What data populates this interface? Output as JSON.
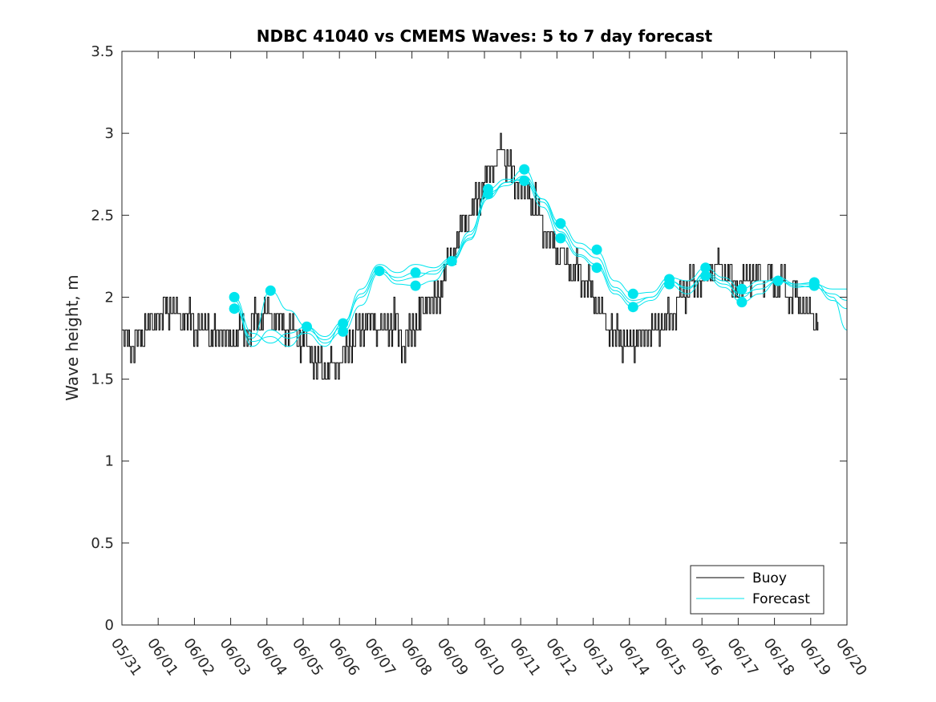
{
  "chart_data": {
    "type": "line",
    "title": "NDBC 41040 vs CMEMS Waves: 5 to 7 day forecast",
    "xlabel": "",
    "ylabel": "Wave height, m",
    "xlim": [
      "05/31",
      "06/20"
    ],
    "ylim": [
      0,
      3.5
    ],
    "x_ticks": [
      "05/31",
      "06/01",
      "06/02",
      "06/03",
      "06/04",
      "06/05",
      "06/06",
      "06/07",
      "06/08",
      "06/09",
      "06/10",
      "06/11",
      "06/12",
      "06/13",
      "06/14",
      "06/15",
      "06/16",
      "06/17",
      "06/18",
      "06/19",
      "06/20"
    ],
    "y_ticks": [
      "0",
      "0.5",
      "1",
      "1.5",
      "2",
      "2.5",
      "3",
      "3.5"
    ],
    "grid": false,
    "legend_position": "bottom-right",
    "colors": {
      "buoy": "#000000",
      "forecast": "#00e5ee"
    },
    "series": [
      {
        "name": "Buoy",
        "x_days": [
          0.0,
          0.3,
          0.6,
          0.9,
          1.2,
          1.5,
          1.8,
          2.1,
          2.4,
          2.7,
          3.0,
          3.3,
          3.6,
          3.9,
          4.2,
          4.5,
          4.8,
          5.1,
          5.4,
          5.7,
          6.0,
          6.3,
          6.6,
          6.9,
          7.2,
          7.5,
          7.8,
          8.1,
          8.4,
          8.7,
          9.0,
          9.3,
          9.6,
          9.9,
          10.2,
          10.5,
          10.8,
          11.1,
          11.4,
          11.7,
          12.0,
          12.3,
          12.6,
          12.9,
          13.2,
          13.5,
          13.8,
          14.1,
          14.4,
          14.7,
          15.0,
          15.3,
          15.6,
          15.9,
          16.2,
          16.5,
          16.8,
          17.1,
          17.4,
          17.7,
          18.0,
          18.3,
          18.6,
          18.9,
          19.2
        ],
        "values": [
          1.75,
          1.68,
          1.8,
          1.85,
          1.92,
          1.9,
          1.88,
          1.82,
          1.8,
          1.78,
          1.72,
          1.78,
          1.85,
          1.9,
          1.88,
          1.82,
          1.78,
          1.7,
          1.58,
          1.55,
          1.6,
          1.72,
          1.8,
          1.82,
          1.8,
          1.85,
          1.7,
          1.85,
          1.95,
          2.0,
          2.2,
          2.4,
          2.5,
          2.65,
          2.8,
          2.9,
          2.7,
          2.65,
          2.55,
          2.4,
          2.3,
          2.2,
          2.15,
          2.05,
          1.9,
          1.8,
          1.72,
          1.7,
          1.75,
          1.82,
          1.85,
          1.95,
          2.05,
          2.08,
          2.15,
          2.2,
          2.1,
          2.05,
          2.15,
          2.12,
          2.08,
          2.05,
          2.0,
          1.92,
          1.85
        ]
      },
      {
        "name": "Forecast",
        "runs": [
          {
            "x_days": [
              3.1,
              3.6,
              4.1,
              4.6,
              5.1,
              5.6,
              6.1,
              6.6,
              7.1,
              7.6,
              8.1,
              8.6,
              9.1,
              9.6,
              10.1,
              10.6,
              11.1,
              11.6,
              12.1,
              12.6,
              13.1,
              13.6,
              14.1,
              14.6,
              15.1,
              15.6,
              16.1,
              16.6,
              17.1,
              17.6,
              18.1,
              18.6,
              19.1,
              19.6,
              20.0
            ],
            "values": [
              2.0,
              1.78,
              1.72,
              1.78,
              1.82,
              1.76,
              1.85,
              2.0,
              2.16,
              2.12,
              2.15,
              2.14,
              2.22,
              2.35,
              2.62,
              2.7,
              2.78,
              2.6,
              2.45,
              2.33,
              2.28,
              2.1,
              2.02,
              2.03,
              2.12,
              2.1,
              2.18,
              2.12,
              2.05,
              2.1,
              2.1,
              2.08,
              2.08,
              2.05,
              2.05
            ]
          },
          {
            "x_days": [
              3.1,
              3.6,
              4.1,
              4.6,
              5.1,
              5.6,
              6.1,
              6.6,
              7.1,
              7.6,
              8.1,
              8.6,
              9.1,
              9.6,
              10.1,
              10.6,
              11.1,
              11.6,
              12.1,
              12.6,
              13.1,
              13.6,
              14.1,
              14.6,
              15.1,
              15.6,
              16.1,
              16.6,
              17.1,
              17.6,
              18.1,
              18.6,
              19.1,
              19.6,
              20.0
            ],
            "values": [
              1.93,
              1.75,
              2.04,
              1.92,
              1.82,
              1.72,
              1.79,
              1.95,
              2.15,
              2.08,
              2.07,
              2.1,
              2.22,
              2.38,
              2.66,
              2.72,
              2.71,
              2.55,
              2.36,
              2.25,
              2.18,
              2.02,
              1.94,
              1.98,
              2.08,
              2.02,
              2.13,
              2.06,
              1.97,
              2.02,
              2.1,
              2.06,
              2.07,
              1.98,
              1.93
            ]
          },
          {
            "x_days": [
              3.1,
              3.6,
              4.1,
              4.6,
              5.1,
              5.6,
              6.1,
              6.6,
              7.1,
              7.6,
              8.1,
              8.6,
              9.1,
              9.6,
              10.1,
              10.6,
              11.1,
              11.6,
              12.1,
              12.6,
              13.1,
              13.6,
              14.1,
              14.6,
              15.1,
              15.6,
              16.1,
              16.6,
              17.1,
              17.6,
              18.1,
              18.6,
              19.1,
              19.6,
              20.0
            ],
            "values": [
              1.96,
              1.7,
              1.8,
              1.75,
              1.78,
              1.7,
              1.84,
              2.05,
              2.2,
              2.15,
              2.2,
              2.18,
              2.24,
              2.4,
              2.64,
              2.68,
              2.74,
              2.6,
              2.42,
              2.3,
              2.24,
              2.06,
              1.98,
              2.0,
              2.1,
              2.05,
              2.15,
              2.1,
              2.0,
              2.08,
              2.12,
              2.08,
              2.09,
              2.0,
              1.8
            ]
          },
          {
            "x_days": [
              3.1,
              3.6,
              4.1,
              4.6,
              5.1,
              5.6,
              6.1,
              6.6,
              7.1,
              7.6,
              8.1,
              8.6,
              9.1,
              9.6,
              10.1,
              10.6,
              11.1,
              11.6,
              12.1,
              12.6,
              13.1,
              13.6,
              14.1,
              14.6,
              15.1,
              15.6,
              16.1,
              16.6,
              17.1,
              17.6,
              18.1,
              18.6,
              19.1,
              19.6,
              20.0
            ],
            "values": [
              1.98,
              1.73,
              1.76,
              1.7,
              1.8,
              1.74,
              1.82,
              2.02,
              2.18,
              2.1,
              2.12,
              2.16,
              2.23,
              2.36,
              2.6,
              2.7,
              2.72,
              2.58,
              2.4,
              2.26,
              2.2,
              2.04,
              1.96,
              2.0,
              2.1,
              2.06,
              2.14,
              2.08,
              2.02,
              2.05,
              2.1,
              2.07,
              2.06,
              2.02,
              1.98
            ]
          }
        ],
        "markers": {
          "x_days": [
            3.1,
            3.1,
            4.1,
            5.1,
            6.1,
            6.1,
            7.1,
            8.1,
            8.1,
            9.1,
            10.1,
            10.1,
            11.1,
            11.1,
            12.1,
            12.1,
            13.1,
            13.1,
            14.1,
            14.1,
            15.1,
            15.1,
            16.1,
            16.1,
            17.1,
            17.1,
            18.1,
            19.1,
            19.1
          ],
          "values": [
            2.0,
            1.93,
            2.04,
            1.82,
            1.84,
            1.79,
            2.16,
            2.15,
            2.07,
            2.22,
            2.66,
            2.63,
            2.78,
            2.71,
            2.45,
            2.36,
            2.29,
            2.18,
            2.02,
            1.94,
            2.11,
            2.08,
            2.18,
            2.13,
            2.05,
            1.97,
            2.1,
            2.09,
            2.07
          ]
        }
      }
    ]
  }
}
